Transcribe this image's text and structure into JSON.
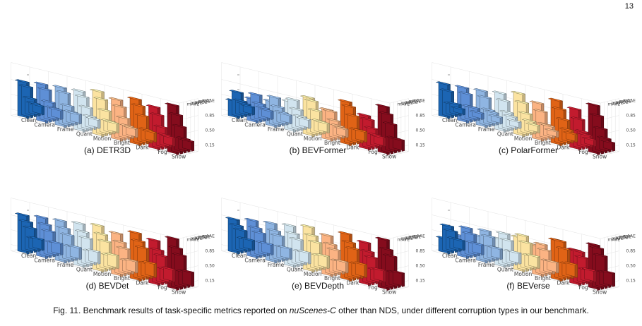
{
  "page_number": "13",
  "caption": {
    "prefix": "Fig. 11. Benchmark results of task-specific metrics reported on ",
    "dataset": "nuScenes-C",
    "suffix": " other than NDS, under different corruption types in our benchmark."
  },
  "colors": {
    "Clean": "#1c65b3",
    "Camera": "#5e8fd6",
    "Frame": "#8fb5e2",
    "Quant": "#d1e4ef",
    "Motion": "#fbe3a1",
    "Bright": "#fbb383",
    "Dark": "#e06316",
    "Fog": "#c21b2e",
    "Snow": "#850c1d"
  },
  "chart_data": [
    {
      "type": "bar3d",
      "subcaption": "(a) DETR3D",
      "categories": [
        "Clean",
        "Camera",
        "Frame",
        "Quant",
        "Motion",
        "Bright",
        "Dark",
        "Fog",
        "Snow"
      ],
      "metrics": [
        "mAVE",
        "mATE",
        "mAOE",
        "mASE",
        "mAAE"
      ],
      "zticks": [
        "0.15",
        "0.50",
        "0.85"
      ],
      "values": [
        [
          0.85,
          0.71,
          0.41,
          0.27,
          0.2
        ],
        [
          0.9,
          0.75,
          0.43,
          0.27,
          0.21
        ],
        [
          0.93,
          0.78,
          0.45,
          0.28,
          0.22
        ],
        [
          0.95,
          0.79,
          0.52,
          0.28,
          0.2
        ],
        [
          1.05,
          0.84,
          0.55,
          0.28,
          0.22
        ],
        [
          0.96,
          0.77,
          0.48,
          0.27,
          0.2
        ],
        [
          1.08,
          0.9,
          0.64,
          0.29,
          0.22
        ],
        [
          1.0,
          0.79,
          0.48,
          0.27,
          0.2
        ],
        [
          1.15,
          0.9,
          0.6,
          0.29,
          0.22
        ]
      ]
    },
    {
      "type": "bar3d",
      "subcaption": "(b) BEVFormer",
      "categories": [
        "Clean",
        "Camera",
        "Frame",
        "Quant",
        "Motion",
        "Bright",
        "Dark",
        "Fog",
        "Snow"
      ],
      "metrics": [
        "mAVE",
        "mATE",
        "mAOE",
        "mASE",
        "mAAE"
      ],
      "zticks": [
        "0.15",
        "0.50",
        "0.85"
      ],
      "values": [
        [
          0.4,
          0.58,
          0.35,
          0.26,
          0.18
        ],
        [
          0.55,
          0.63,
          0.39,
          0.27,
          0.19
        ],
        [
          0.6,
          0.67,
          0.42,
          0.27,
          0.2
        ],
        [
          0.7,
          0.72,
          0.47,
          0.28,
          0.2
        ],
        [
          0.9,
          0.8,
          0.55,
          0.28,
          0.22
        ],
        [
          0.72,
          0.66,
          0.42,
          0.27,
          0.19
        ],
        [
          1.02,
          0.88,
          0.64,
          0.29,
          0.24
        ],
        [
          0.8,
          0.68,
          0.45,
          0.27,
          0.2
        ],
        [
          1.12,
          0.92,
          0.66,
          0.3,
          0.25
        ]
      ]
    },
    {
      "type": "bar3d",
      "subcaption": "(c) PolarFormer",
      "categories": [
        "Clean",
        "Camera",
        "Frame",
        "Quant",
        "Motion",
        "Bright",
        "Dark",
        "Fog",
        "Snow"
      ],
      "metrics": [
        "mAVE",
        "mATE",
        "mAOE",
        "mASE",
        "mAAE"
      ],
      "zticks": [
        "0.15",
        "0.50",
        "0.85"
      ],
      "values": [
        [
          0.8,
          0.61,
          0.28,
          0.26,
          0.13
        ],
        [
          0.82,
          0.65,
          0.32,
          0.27,
          0.14
        ],
        [
          0.85,
          0.67,
          0.35,
          0.27,
          0.15
        ],
        [
          0.9,
          0.7,
          0.4,
          0.28,
          0.15
        ],
        [
          1.0,
          0.76,
          0.48,
          0.28,
          0.17
        ],
        [
          0.88,
          0.66,
          0.33,
          0.27,
          0.14
        ],
        [
          1.05,
          0.82,
          0.55,
          0.29,
          0.18
        ],
        [
          0.95,
          0.69,
          0.37,
          0.27,
          0.15
        ],
        [
          1.15,
          0.88,
          0.55,
          0.3,
          0.19
        ]
      ]
    },
    {
      "type": "bar3d",
      "subcaption": "(d) BEVDet",
      "categories": [
        "Clean",
        "Camera",
        "Frame",
        "Quant",
        "Motion",
        "Bright",
        "Dark",
        "Fog",
        "Snow"
      ],
      "metrics": [
        "mAVE",
        "mATE",
        "mAOE",
        "mASE",
        "mAAE"
      ],
      "zticks": [
        "0.15",
        "0.50",
        "0.85"
      ],
      "values": [
        [
          0.9,
          0.72,
          0.55,
          0.28,
          0.25
        ],
        [
          0.95,
          0.76,
          0.58,
          0.29,
          0.26
        ],
        [
          0.98,
          0.78,
          0.6,
          0.3,
          0.27
        ],
        [
          1.02,
          0.8,
          0.63,
          0.3,
          0.28
        ],
        [
          1.08,
          0.85,
          0.66,
          0.31,
          0.3
        ],
        [
          1.0,
          0.77,
          0.6,
          0.29,
          0.27
        ],
        [
          1.12,
          0.9,
          0.72,
          0.33,
          0.32
        ],
        [
          1.05,
          0.8,
          0.64,
          0.3,
          0.29
        ],
        [
          1.2,
          0.95,
          0.76,
          0.34,
          0.33
        ]
      ]
    },
    {
      "type": "bar3d",
      "subcaption": "(e) BEVDepth",
      "categories": [
        "Clean",
        "Camera",
        "Frame",
        "Quant",
        "Motion",
        "Bright",
        "Dark",
        "Fog",
        "Snow"
      ],
      "metrics": [
        "mAVE",
        "mATE",
        "mAOE",
        "mASE",
        "mAAE"
      ],
      "zticks": [
        "0.15",
        "0.50",
        "0.85"
      ],
      "values": [
        [
          0.8,
          0.63,
          0.5,
          0.27,
          0.23
        ],
        [
          0.88,
          0.68,
          0.54,
          0.28,
          0.24
        ],
        [
          0.92,
          0.72,
          0.58,
          0.29,
          0.25
        ],
        [
          0.97,
          0.76,
          0.6,
          0.29,
          0.26
        ],
        [
          1.05,
          0.82,
          0.64,
          0.3,
          0.28
        ],
        [
          0.95,
          0.72,
          0.57,
          0.28,
          0.25
        ],
        [
          1.1,
          0.87,
          0.7,
          0.32,
          0.3
        ],
        [
          1.0,
          0.76,
          0.6,
          0.29,
          0.27
        ],
        [
          1.18,
          0.92,
          0.74,
          0.33,
          0.31
        ]
      ]
    },
    {
      "type": "bar3d",
      "subcaption": "(f) BEVerse",
      "categories": [
        "Clean",
        "Camera",
        "Frame",
        "Quant",
        "Motion",
        "Bright",
        "Dark",
        "Fog",
        "Snow"
      ],
      "metrics": [
        "mAVE",
        "mATE",
        "mAOE",
        "mASE",
        "mAAE"
      ],
      "zticks": [
        "0.15",
        "0.50",
        "0.85"
      ],
      "values": [
        [
          0.35,
          0.62,
          0.48,
          0.27,
          0.22
        ],
        [
          0.5,
          0.68,
          0.52,
          0.28,
          0.23
        ],
        [
          0.6,
          0.72,
          0.56,
          0.29,
          0.24
        ],
        [
          0.65,
          0.76,
          0.58,
          0.29,
          0.25
        ],
        [
          0.8,
          0.82,
          0.63,
          0.3,
          0.27
        ],
        [
          0.7,
          0.72,
          0.56,
          0.28,
          0.24
        ],
        [
          0.95,
          0.9,
          0.7,
          0.32,
          0.3
        ],
        [
          0.82,
          0.76,
          0.6,
          0.29,
          0.26
        ],
        [
          1.05,
          0.95,
          0.75,
          0.33,
          0.31
        ]
      ]
    }
  ]
}
